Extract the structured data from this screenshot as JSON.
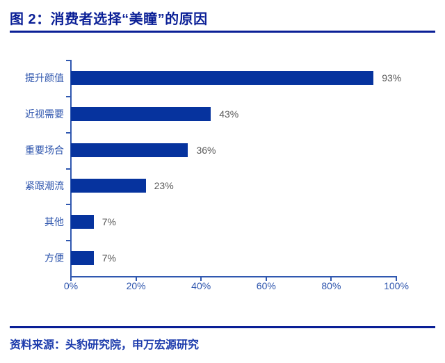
{
  "title": "图 2：消费者选择“美瞳”的原因",
  "footer": {
    "source_label": "资料来源：头豹研究院，申万宏源研究"
  },
  "colors": {
    "title_navy": "#0A1F96",
    "rule_navy": "#0A1F96",
    "bar_blue": "#06339E",
    "axis_blue": "#3058B0",
    "label_blue": "#2E55AD",
    "value_gray": "#595959",
    "source_blue": "#1C3BAC"
  },
  "chart_data": {
    "type": "bar",
    "orientation": "horizontal",
    "title": "消费者选择“美瞳”的原因",
    "categories": [
      "提升颜值",
      "近视需要",
      "重要场合",
      "紧跟潮流",
      "其他",
      "方便"
    ],
    "values": [
      93,
      43,
      36,
      23,
      7,
      7
    ],
    "value_labels": [
      "93%",
      "43%",
      "36%",
      "23%",
      "7%",
      "7%"
    ],
    "xlabel": "",
    "ylabel": "",
    "xlim": [
      0,
      100
    ],
    "x_tick_labels": [
      "0%",
      "20%",
      "40%",
      "60%",
      "80%",
      "100%"
    ],
    "x_tick_values": [
      0,
      20,
      40,
      60,
      80,
      100
    ],
    "grid": false,
    "legend": "none",
    "data_labels": "outside-end"
  }
}
